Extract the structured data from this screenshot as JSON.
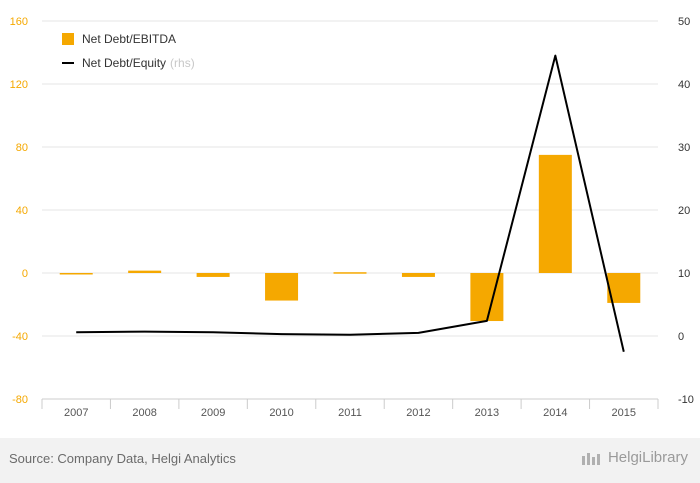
{
  "chart_data": {
    "type": "bar",
    "categories": [
      "2007",
      "2008",
      "2009",
      "2010",
      "2011",
      "2012",
      "2013",
      "2014",
      "2015"
    ],
    "series": [
      {
        "name": "Net Debt/EBITDA",
        "kind": "bar",
        "axis": "left",
        "color": "#f5a800",
        "values": [
          -0.5,
          1.5,
          -2.5,
          -17.5,
          0.5,
          -2.5,
          -30.5,
          75,
          -19
        ]
      },
      {
        "name": "Net Debt/Equity",
        "name_suffix": "(rhs)",
        "kind": "line",
        "axis": "right",
        "color": "#000000",
        "values": [
          0.6,
          0.7,
          0.6,
          0.3,
          0.2,
          0.5,
          2.4,
          44.5,
          -2.5
        ]
      }
    ],
    "y_left": {
      "ylim": [
        -80,
        160
      ],
      "ticks": [
        "160",
        "120",
        "80",
        "40",
        "0",
        "-40",
        "-80"
      ],
      "color": "#f5a800"
    },
    "y_right": {
      "ylim": [
        -10,
        50
      ],
      "ticks": [
        "50",
        "40",
        "30",
        "20",
        "10",
        "0",
        "-10"
      ],
      "color": "#333333"
    },
    "grid": true,
    "legend": "top-left"
  },
  "footer": {
    "source": "Source: Company Data, Helgi Analytics",
    "brand": "HelgiLibrary"
  }
}
